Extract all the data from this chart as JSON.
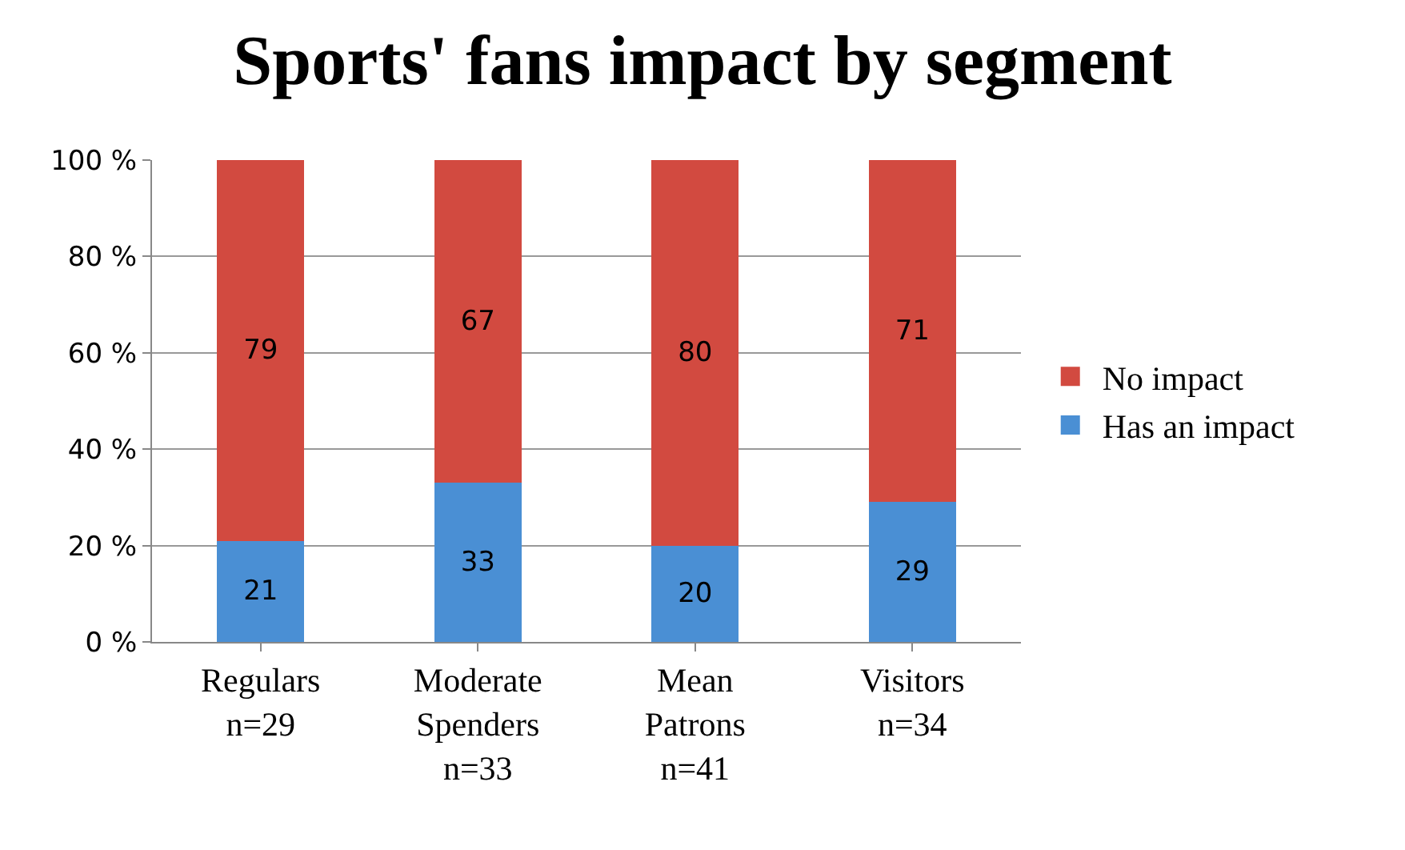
{
  "chart_data": {
    "type": "bar",
    "title": "Sports' fans impact by segment",
    "stacked": true,
    "data_labels": true,
    "categories": [
      "Regulars\nn=29",
      "Moderate\nSpenders\nn=33",
      "Mean\nPatrons\nn=41",
      "Visitors\nn=34"
    ],
    "series": [
      {
        "name": "Has an impact",
        "color": "#4a8fd4",
        "values": [
          21,
          33,
          20,
          29
        ]
      },
      {
        "name": "No impact",
        "color": "#d24a40",
        "values": [
          79,
          67,
          80,
          71
        ]
      }
    ],
    "ylim": [
      0,
      100
    ],
    "yticks": [
      {
        "value": 0,
        "label": "0 %"
      },
      {
        "value": 20,
        "label": "20 %"
      },
      {
        "value": 40,
        "label": "40 %"
      },
      {
        "value": 60,
        "label": "60 %"
      },
      {
        "value": 80,
        "label": "80 %"
      },
      {
        "value": 100,
        "label": "100 %"
      }
    ],
    "grid": "y",
    "legend": "right"
  }
}
